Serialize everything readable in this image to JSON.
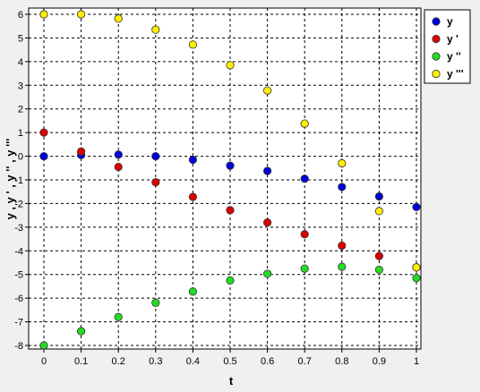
{
  "chart_data": {
    "type": "scatter",
    "title": "",
    "xlabel": "t",
    "ylabel": "y , y ' , y '' , y '''",
    "xlim": [
      0,
      1
    ],
    "ylim": [
      -8.2,
      6.2
    ],
    "grid": true,
    "legend_position": "top-right",
    "x_ticks": [
      "0",
      "0.1",
      "0.2",
      "0.3",
      "0.4",
      "0.5",
      "0.6",
      "0.7",
      "0.8",
      "0.9",
      "1"
    ],
    "y_ticks": [
      "6",
      "5",
      "4",
      "3",
      "2",
      "1",
      "0",
      "-1",
      "-2",
      "-3",
      "-4",
      "-5",
      "-6",
      "-7",
      "-8"
    ],
    "x_tick_values": [
      0,
      0.1,
      0.2,
      0.3,
      0.4,
      0.5,
      0.6,
      0.7,
      0.8,
      0.9,
      1
    ],
    "y_tick_values": [
      6,
      5,
      4,
      3,
      2,
      1,
      0,
      -1,
      -2,
      -3,
      -4,
      -5,
      -6,
      -7,
      -8
    ],
    "x": [
      0,
      0.1,
      0.2,
      0.3,
      0.4,
      0.5,
      0.6,
      0.7,
      0.8,
      0.9,
      1
    ],
    "series": [
      {
        "name": "y",
        "color": "#0000dd",
        "values": [
          0,
          0.05,
          0.07,
          0.0,
          -0.15,
          -0.4,
          -0.62,
          -0.95,
          -1.3,
          -1.7,
          -2.15
        ]
      },
      {
        "name": "y '",
        "color": "#dd0000",
        "values": [
          1.0,
          0.2,
          -0.45,
          -1.1,
          -1.72,
          -2.28,
          -2.8,
          -3.3,
          -3.78,
          -4.22,
          -4.7
        ]
      },
      {
        "name": "y ''",
        "color": "#22dd22",
        "values": [
          -8.0,
          -7.4,
          -6.8,
          -6.2,
          -5.72,
          -5.25,
          -4.97,
          -4.75,
          -4.67,
          -4.8,
          -5.15
        ]
      },
      {
        "name": "y '''",
        "color": "#ffee00",
        "values": [
          6.0,
          6.0,
          5.82,
          5.35,
          4.72,
          3.85,
          2.78,
          1.38,
          -0.3,
          -2.32,
          -4.7
        ]
      }
    ]
  }
}
